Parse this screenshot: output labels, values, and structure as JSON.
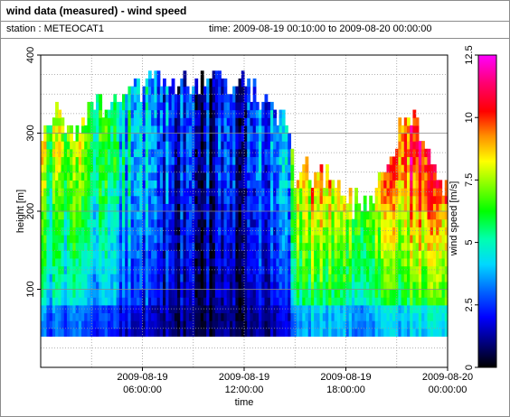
{
  "title": "wind data (measured) - wind speed",
  "station": "station : METEOCAT1",
  "time_range": "time: 2009-08-19 00:10:00 to 2009-08-20 00:00:00",
  "chart_data": {
    "type": "heatmap",
    "xlabel": "time",
    "ylabel": "height [m]",
    "colorbar_label": "wind speed [m/s]",
    "x_ticks": [
      {
        "hour": 6,
        "line1": "2009-08-19",
        "line2": "06:00:00"
      },
      {
        "hour": 12,
        "line1": "2009-08-19",
        "line2": "12:00:00"
      },
      {
        "hour": 18,
        "line1": "2009-08-19",
        "line2": "18:00:00"
      },
      {
        "hour": 24,
        "line1": "2009-08-20",
        "line2": "00:00:00"
      }
    ],
    "xlim_hours": [
      0,
      24
    ],
    "ylim": [
      0,
      400
    ],
    "y_ticks": [
      100,
      200,
      300,
      400
    ],
    "colorbar_range": [
      0,
      12.5
    ],
    "colorbar_ticks": [
      0,
      2.5,
      5,
      7.5,
      10,
      12.5
    ],
    "grid": true,
    "height_range_data": [
      40,
      360
    ],
    "time_profile": [
      [
        0.0,
        6.0,
        300
      ],
      [
        1.0,
        5.5,
        320
      ],
      [
        2.0,
        5.8,
        300
      ],
      [
        3.0,
        5.0,
        320
      ],
      [
        4.0,
        4.5,
        340
      ],
      [
        5.0,
        4.0,
        355
      ],
      [
        6.0,
        3.5,
        360
      ],
      [
        7.0,
        3.0,
        360
      ],
      [
        8.0,
        1.8,
        360
      ],
      [
        9.0,
        1.4,
        360
      ],
      [
        10.0,
        1.3,
        360
      ],
      [
        11.0,
        1.5,
        360
      ],
      [
        12.0,
        1.8,
        360
      ],
      [
        13.0,
        2.4,
        340
      ],
      [
        14.0,
        3.0,
        320
      ],
      [
        14.7,
        3.4,
        310
      ],
      [
        15.0,
        7.5,
        240
      ],
      [
        16.0,
        8.0,
        250
      ],
      [
        17.0,
        8.3,
        240
      ],
      [
        18.0,
        7.5,
        215
      ],
      [
        19.0,
        6.5,
        200
      ],
      [
        20.0,
        7.2,
        240
      ],
      [
        21.0,
        8.0,
        290
      ],
      [
        22.0,
        8.5,
        320
      ],
      [
        23.0,
        8.3,
        260
      ],
      [
        24.0,
        8.8,
        220
      ]
    ]
  }
}
